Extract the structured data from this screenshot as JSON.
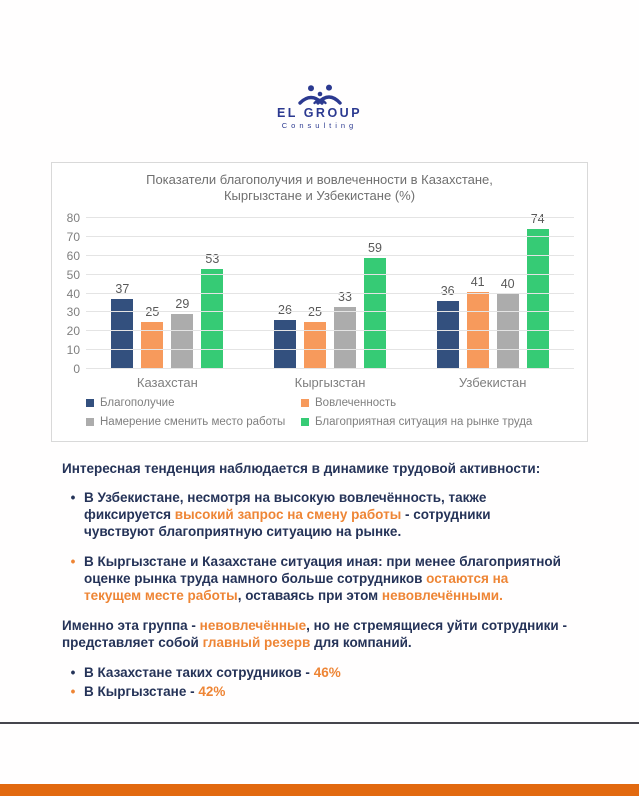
{
  "logo": {
    "name": "EL GROUP",
    "subtitle": "Consulting",
    "color": "#2B3990"
  },
  "chart_data": {
    "type": "bar",
    "title": "Показатели благополучия и вовлеченности в Казахстане, Кыргызстане и Узбекистане (%)",
    "title_line1": "Показатели благополучия и вовлеченности в Казахстане,",
    "title_line2": "Кыргызстане и Узбекистане (%)",
    "categories": [
      "Казахстан",
      "Кыргызстан",
      "Узбекистан"
    ],
    "series": [
      {
        "name": "Благополучие",
        "color": "#33507E",
        "values": [
          37,
          26,
          36
        ]
      },
      {
        "name": "Вовлеченность",
        "color": "#F79A5C",
        "values": [
          25,
          25,
          41
        ]
      },
      {
        "name": "Намерение сменить место работы",
        "color": "#ACACAC",
        "values": [
          29,
          33,
          40
        ]
      },
      {
        "name": "Благоприятная ситуация на рынке труда",
        "color": "#36CB75",
        "values": [
          53,
          59,
          74
        ]
      }
    ],
    "ylim": [
      0,
      80
    ],
    "yticks": [
      0,
      10,
      20,
      30,
      40,
      50,
      60,
      70,
      80
    ],
    "grid": true,
    "legend_position": "bottom",
    "data_labels": true
  },
  "analysis": {
    "intro": [
      {
        "t": "Интересная тенденция наблюдается в динамике трудовой активности:",
        "c": "navy"
      }
    ],
    "bullets": [
      {
        "marker": "navy",
        "segments": [
          {
            "t": "В Узбекистане, несмотря на высокую вовлечённость, также фиксируется ",
            "c": "navy"
          },
          {
            "t": "высокий запрос на смену работы",
            "c": "orange"
          },
          {
            "t": " - сотрудники чувствуют благоприятную ситуацию на рынке.",
            "c": "navy"
          }
        ]
      },
      {
        "marker": "orange",
        "segments": [
          {
            "t": "В Кыргызстане и Казахстане ситуация иная: при менее благоприятной оценке рынка труда намного больше сотрудников ",
            "c": "navy"
          },
          {
            "t": "остаются на текущем месте работы",
            "c": "orange"
          },
          {
            "t": ", оставаясь при этом ",
            "c": "navy"
          },
          {
            "t": "невовлечёнными.",
            "c": "orange"
          }
        ]
      }
    ],
    "summary": [
      {
        "t": "Именно эта группа - ",
        "c": "navy"
      },
      {
        "t": "невовлечённые",
        "c": "orange"
      },
      {
        "t": ", но не стремящиеся уйти сотрудники - представляет собой ",
        "c": "navy"
      },
      {
        "t": "главный резерв",
        "c": "orange"
      },
      {
        "t": " для компаний.",
        "c": "navy"
      }
    ],
    "stats": [
      {
        "marker": "navy",
        "segments": [
          {
            "t": "В Казахстане таких сотрудников - ",
            "c": "navy"
          },
          {
            "t": "46%",
            "c": "orange"
          }
        ]
      },
      {
        "marker": "orange",
        "segments": [
          {
            "t": "В Кыргызстане - ",
            "c": "navy"
          },
          {
            "t": "42%",
            "c": "orange"
          }
        ]
      }
    ]
  },
  "page": {
    "background": "#FFFFFF",
    "divider_color": "#45454D",
    "accent_bar_color": "#E2690F",
    "text_navy": "#253358",
    "text_orange": "#EE8535"
  }
}
